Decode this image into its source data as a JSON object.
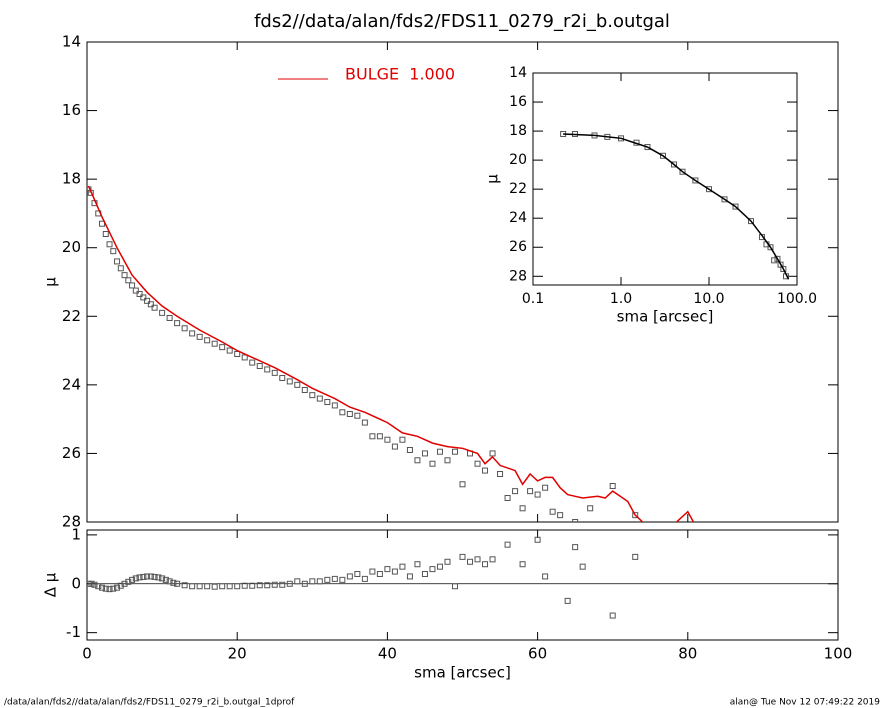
{
  "chart_data": [
    {
      "type": "scatter",
      "title": "fds2//data/alan/fds2/FDS11_0279_r2i_b.outgal",
      "ylabel": "μ",
      "xlim": [
        0,
        100
      ],
      "xticks": [
        0,
        20,
        40,
        60,
        80,
        100
      ],
      "ylim": [
        14,
        28
      ],
      "y_inverted": true,
      "yticks": [
        14,
        16,
        18,
        20,
        22,
        24,
        26,
        28
      ],
      "legend": "top",
      "series": [
        {
          "mode": "points",
          "color": "#555555",
          "x": [
            0.2,
            0.5,
            1,
            1.5,
            2,
            2.5,
            3,
            3.5,
            4,
            4.5,
            5,
            5.5,
            6,
            6.5,
            7,
            7.5,
            8,
            8.5,
            9,
            10,
            11,
            12,
            13,
            14,
            15,
            16,
            17,
            18,
            19,
            20,
            21,
            22,
            23,
            24,
            25,
            26,
            27,
            28,
            29,
            30,
            31,
            32,
            33,
            34,
            35,
            36,
            37,
            38,
            39,
            40,
            41,
            42,
            43,
            44,
            45,
            46,
            47,
            48,
            49,
            50,
            51,
            52,
            53,
            54,
            55,
            56,
            57,
            58,
            59,
            60,
            61,
            62,
            63,
            65,
            67,
            70,
            73
          ],
          "values": [
            18.3,
            18.4,
            18.7,
            19.0,
            19.3,
            19.6,
            19.9,
            20.1,
            20.4,
            20.6,
            20.8,
            20.95,
            21.1,
            21.25,
            21.35,
            21.45,
            21.55,
            21.65,
            21.75,
            21.9,
            22.05,
            22.2,
            22.35,
            22.5,
            22.6,
            22.7,
            22.8,
            22.9,
            23.0,
            23.1,
            23.2,
            23.35,
            23.45,
            23.55,
            23.65,
            23.8,
            23.9,
            24.0,
            24.15,
            24.3,
            24.4,
            24.5,
            24.6,
            24.8,
            24.85,
            24.9,
            25.1,
            25.5,
            25.5,
            25.6,
            25.8,
            25.6,
            25.9,
            26.2,
            26.0,
            26.3,
            25.95,
            26.2,
            25.95,
            26.9,
            26.0,
            26.3,
            26.5,
            26.0,
            26.6,
            27.3,
            27.1,
            27.6,
            27.1,
            27.2,
            27.0,
            27.7,
            27.8,
            28.0,
            27.6,
            26.95,
            27.8
          ]
        },
        {
          "mode": "line",
          "name": "BULGE  1.000",
          "color": "#e00000",
          "x": [
            0.2,
            1,
            2,
            4,
            6,
            8,
            10,
            12,
            15,
            18,
            20,
            22,
            25,
            28,
            30,
            33,
            35,
            37,
            40,
            42,
            44,
            46,
            48,
            50,
            52,
            53,
            54,
            55,
            57,
            58,
            59,
            60,
            61,
            62,
            63,
            64,
            65,
            66,
            68,
            69,
            70,
            72,
            73,
            74,
            76,
            78,
            80,
            81,
            82
          ],
          "values": [
            18.2,
            18.6,
            19.1,
            20.0,
            20.8,
            21.3,
            21.7,
            22.0,
            22.4,
            22.75,
            23.0,
            23.2,
            23.5,
            23.85,
            24.1,
            24.4,
            24.65,
            24.8,
            25.1,
            25.4,
            25.5,
            25.7,
            25.8,
            25.85,
            26.0,
            26.3,
            26.1,
            26.35,
            26.5,
            26.9,
            26.6,
            26.8,
            26.7,
            26.7,
            27.0,
            27.2,
            27.25,
            27.3,
            27.25,
            27.3,
            27.1,
            27.4,
            27.8,
            28.0,
            28.3,
            28.1,
            27.7,
            28.1,
            28.4
          ]
        }
      ]
    },
    {
      "type": "scatter",
      "xlabel": "sma [arcsec]",
      "ylabel": "Δ μ",
      "xlim": [
        0,
        100
      ],
      "xticks": [
        0,
        20,
        40,
        60,
        80,
        100
      ],
      "ylim": [
        -1.15,
        1.1
      ],
      "yticks": [
        -1,
        0,
        1
      ],
      "hline": 0,
      "series": [
        {
          "mode": "points",
          "color": "#555555",
          "x": [
            0.2,
            0.6,
            1,
            1.5,
            2,
            2.5,
            3,
            3.5,
            4,
            4.5,
            5,
            5.5,
            6,
            6.5,
            7,
            7.5,
            8,
            8.5,
            9,
            9.5,
            10,
            10.5,
            11,
            11.5,
            12,
            13,
            14,
            15,
            16,
            17,
            18,
            19,
            20,
            21,
            22,
            23,
            24,
            25,
            26,
            27,
            28,
            29,
            30,
            31,
            32,
            33,
            34,
            35,
            36,
            37,
            38,
            39,
            40,
            41,
            42,
            43,
            44,
            45,
            46,
            47,
            48,
            49,
            50,
            51,
            52,
            53,
            54,
            56,
            58,
            60,
            61,
            64,
            65,
            66,
            70,
            73
          ],
          "values": [
            0,
            0,
            -0.02,
            -0.05,
            -0.08,
            -0.1,
            -0.11,
            -0.1,
            -0.08,
            -0.04,
            0,
            0.04,
            0.08,
            0.11,
            0.13,
            0.14,
            0.15,
            0.15,
            0.14,
            0.13,
            0.11,
            0.08,
            0.05,
            0.02,
            0,
            -0.03,
            -0.05,
            -0.05,
            -0.05,
            -0.06,
            -0.05,
            -0.05,
            -0.05,
            -0.04,
            -0.04,
            -0.03,
            -0.03,
            -0.02,
            -0.02,
            0,
            0.05,
            0,
            0.05,
            0.05,
            0.08,
            0.1,
            0.08,
            0.15,
            0.2,
            0.1,
            0.25,
            0.2,
            0.3,
            0.25,
            0.35,
            0.15,
            0.4,
            0.2,
            0.3,
            0.35,
            0.45,
            -0.05,
            0.55,
            0.45,
            0.5,
            0.4,
            0.5,
            0.8,
            0.4,
            0.9,
            0.15,
            -0.35,
            0.75,
            0.35,
            -0.65,
            0.55
          ]
        }
      ]
    },
    {
      "type": "scatter",
      "xlabel": "sma [arcsec]",
      "ylabel": "μ",
      "xscale": "log",
      "xlim": [
        0.1,
        100
      ],
      "xticks": [
        0.1,
        {
          "value": 1,
          "label": "1.0"
        },
        {
          "value": 10,
          "label": "10.0"
        },
        {
          "value": 100,
          "label": "100.0"
        }
      ],
      "ylim": [
        14,
        28.6
      ],
      "y_inverted": true,
      "yticks": [
        14,
        16,
        18,
        20,
        22,
        24,
        26,
        28
      ],
      "series": [
        {
          "mode": "points",
          "color": "#555555",
          "x": [
            0.22,
            0.3,
            0.5,
            0.7,
            1,
            1.5,
            2,
            3,
            4,
            5,
            7,
            10,
            15,
            20,
            30,
            40,
            45,
            50,
            55,
            60,
            65,
            70,
            75
          ],
          "values": [
            18.2,
            18.2,
            18.3,
            18.4,
            18.5,
            18.8,
            19.1,
            19.7,
            20.3,
            20.8,
            21.4,
            22.0,
            22.7,
            23.2,
            24.2,
            25.3,
            25.8,
            26.0,
            26.9,
            26.8,
            27.2,
            27.5,
            28.0
          ]
        },
        {
          "mode": "line",
          "color": "#000000",
          "x": [
            0.22,
            0.5,
            1,
            2,
            3,
            4,
            5,
            7,
            10,
            15,
            20,
            30,
            40,
            50,
            60,
            70,
            80
          ],
          "values": [
            18.2,
            18.3,
            18.5,
            19.1,
            19.7,
            20.3,
            20.8,
            21.4,
            22.0,
            22.7,
            23.2,
            24.2,
            25.2,
            26.0,
            26.8,
            27.5,
            28.2
          ]
        }
      ]
    }
  ],
  "footer_left": "/data/alan/fds2//data/alan/fds2/FDS11_0279_r2i_b.outgal_1dprof",
  "footer_right": "alan@  Tue Nov 12 07:49:22 2019"
}
